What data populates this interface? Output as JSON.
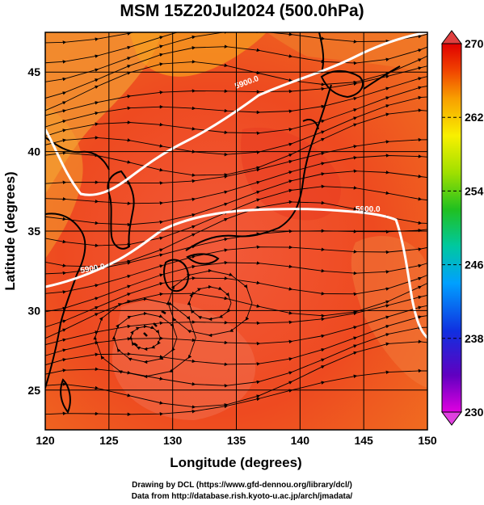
{
  "title": "MSM 15Z20Jul2024 (500.0hPa)",
  "map": {
    "lon_range": [
      120,
      150
    ],
    "lat_range": [
      22.5,
      47.5
    ],
    "x_ticks": [
      120,
      125,
      130,
      135,
      140,
      145,
      150
    ],
    "x_tick_labels": [
      "120",
      "125",
      "130",
      "135",
      "140",
      "145",
      "150"
    ],
    "y_ticks": [
      25,
      30,
      35,
      40,
      45
    ],
    "y_tick_labels": [
      "25",
      "30",
      "35",
      "40",
      "45"
    ],
    "xlabel": "Longitude (degrees)",
    "ylabel": "Latitude  (degrees)",
    "grid": true,
    "field": "temperature shading with wind streamlines"
  },
  "contours": {
    "label": "5900.0",
    "color": "#ffffff"
  },
  "colorbar": {
    "min": 230,
    "max": 270,
    "labels": [
      "270",
      "262",
      "254",
      "246",
      "238",
      "230"
    ],
    "stops": [
      "#e000e0",
      "#6000c0",
      "#1030e0",
      "#00a0ff",
      "#00c8a0",
      "#20c020",
      "#a0e000",
      "#f8f000",
      "#f8a000",
      "#f04000",
      "#e00000"
    ]
  },
  "credits": {
    "line1": "Drawing by DCL (https://www.gfd-dennou.org/library/dcl/)",
    "line2": "Data from http://database.rish.kyoto-u.ac.jp/arch/jmadata/"
  }
}
